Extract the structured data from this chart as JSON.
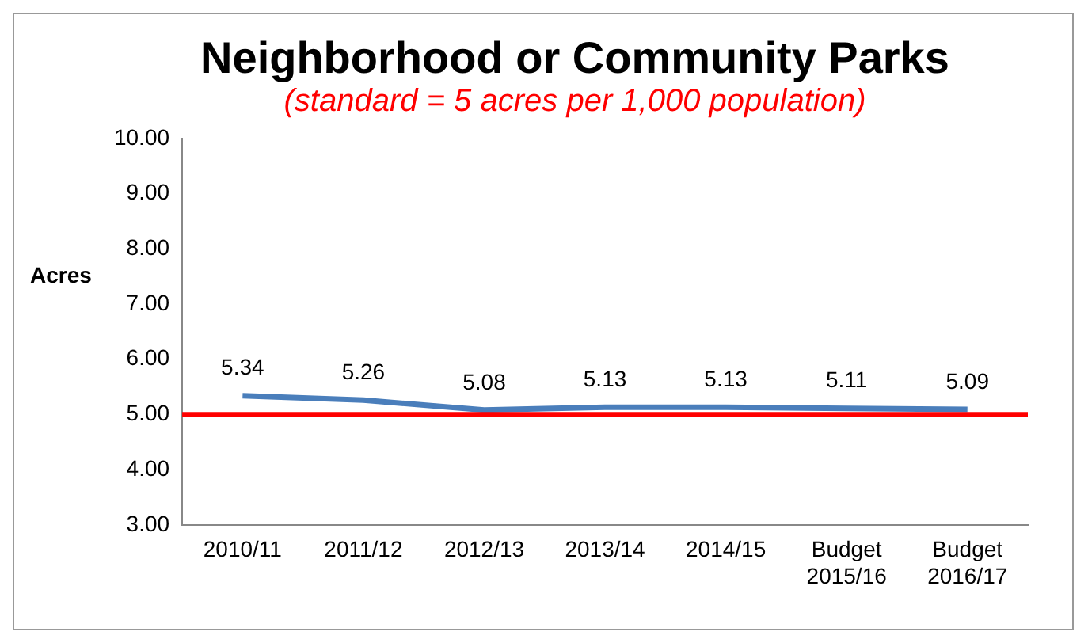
{
  "chart_data": {
    "type": "line",
    "title": "Neighborhood or Community Parks",
    "subtitle": "(standard = 5 acres per 1,000 population)",
    "ylabel": "Acres",
    "categories": [
      "2010/11",
      "2011/12",
      "2012/13",
      "2013/14",
      "2014/15",
      "Budget 2015/16",
      "Budget 2016/17"
    ],
    "series": [
      {
        "color": "#4a7ebb",
        "values": [
          5.34,
          5.26,
          5.08,
          5.13,
          5.13,
          5.11,
          5.09
        ]
      }
    ],
    "ylim": [
      3,
      10
    ],
    "yticks": [
      {
        "value": 3,
        "label": "3.00"
      },
      {
        "value": 4,
        "label": "4.00"
      },
      {
        "value": 5,
        "label": "5.00"
      },
      {
        "value": 6,
        "label": "6.00"
      },
      {
        "value": 7,
        "label": "7.00"
      },
      {
        "value": 8,
        "label": "8.00"
      },
      {
        "value": 9,
        "label": "9.00"
      },
      {
        "value": 10,
        "label": "10.00"
      }
    ],
    "ref_lines": [
      {
        "axis": "y",
        "value": 5,
        "color": "#ff0000"
      }
    ],
    "data_labels": true,
    "grid": false,
    "legend": false,
    "marker": "none",
    "line_style": "solid"
  }
}
